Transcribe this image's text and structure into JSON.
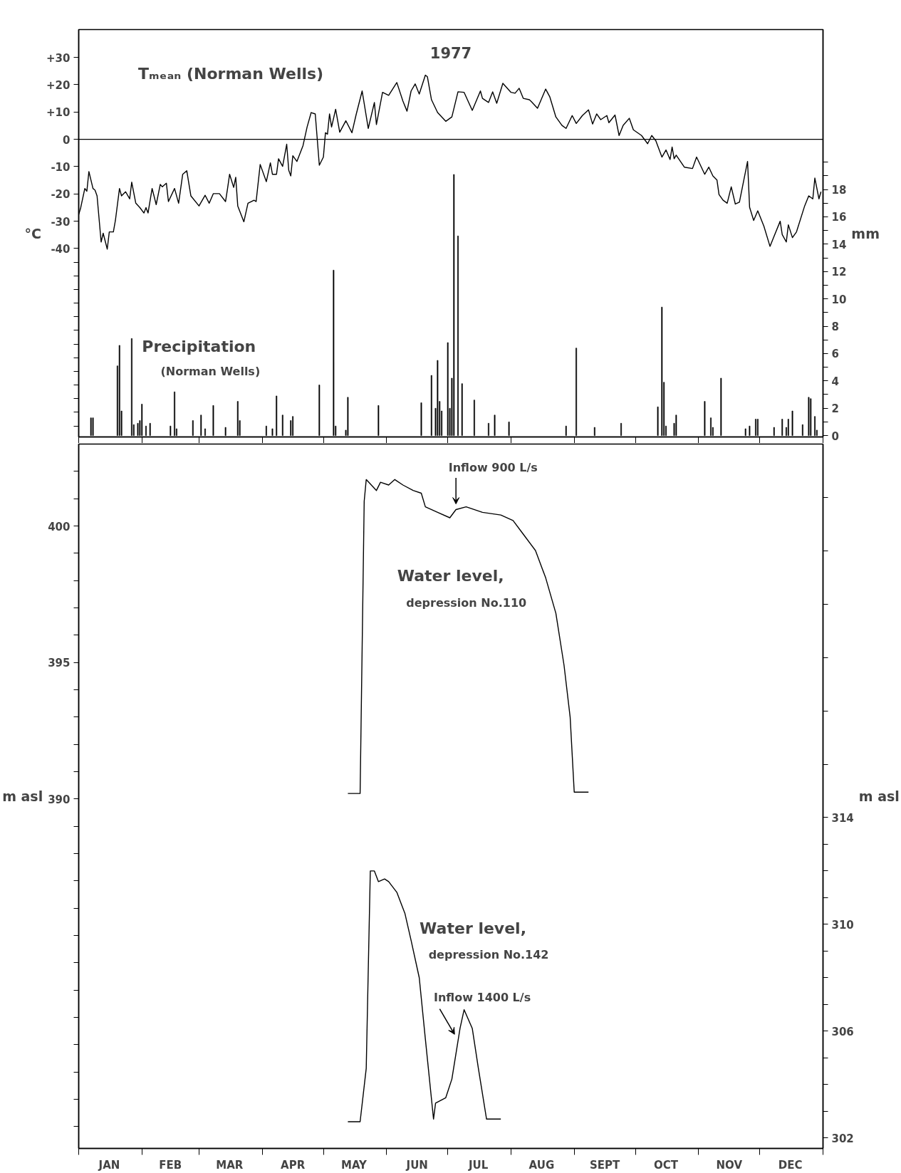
{
  "chart_data": [
    {
      "type": "line",
      "title": "1977",
      "ylabel": "°C",
      "y2label": "mm",
      "grid": false,
      "tick_labels": "y",
      "xlim": [
        "1977-01-01",
        "1978-01-01"
      ],
      "xticks": [
        {
          "value": "1977-01-01",
          "label": null
        },
        {
          "value": "1977-02-01",
          "label": null
        },
        {
          "value": "1977-03-01",
          "label": null
        },
        {
          "value": "1977-04-01",
          "label": null
        },
        {
          "value": "1977-05-01",
          "label": null
        },
        {
          "value": "1977-06-01",
          "label": null
        },
        {
          "value": "1977-07-01",
          "label": null
        },
        {
          "value": "1977-08-01",
          "label": null
        },
        {
          "value": "1977-09-01",
          "label": null
        },
        {
          "value": "1977-10-01",
          "label": null
        },
        {
          "value": "1977-11-01",
          "label": null
        },
        {
          "value": "1977-12-01",
          "label": null
        },
        {
          "value": "1978-01-01",
          "label": null
        }
      ],
      "ylim": [
        -109,
        40.2
      ],
      "yticks": [
        {
          "value": 30,
          "label": "+30"
        },
        {
          "value": 20,
          "label": "+20"
        },
        {
          "value": 10,
          "label": "+10"
        },
        0,
        -10,
        -20,
        -30,
        -40,
        {
          "value": -45,
          "label": null
        },
        {
          "value": -50,
          "label": null
        },
        {
          "value": -55,
          "label": null
        },
        {
          "value": -60,
          "label": null
        },
        {
          "value": -65,
          "label": null
        },
        {
          "value": -70,
          "label": null
        },
        {
          "value": -75,
          "label": null
        },
        {
          "value": -80,
          "label": null
        },
        {
          "value": -85,
          "label": null
        },
        {
          "value": -90,
          "label": null
        },
        {
          "value": -95,
          "label": null
        },
        {
          "value": -100,
          "label": null
        },
        {
          "value": -105,
          "label": null
        }
      ],
      "y2lim": [
        -0.1,
        29.7
      ],
      "y2ticks": [
        0,
        {
          "value": 1,
          "label": null
        },
        2,
        {
          "value": 3,
          "label": null
        },
        4,
        {
          "value": 5,
          "label": null
        },
        6,
        {
          "value": 7,
          "label": null
        },
        8,
        {
          "value": 9,
          "label": null
        },
        10,
        {
          "value": 11,
          "label": null
        },
        12,
        {
          "value": 13,
          "label": null
        },
        14,
        {
          "value": 15,
          "label": null
        },
        16,
        {
          "value": 17,
          "label": null
        },
        18,
        {
          "value": 19,
          "label": null
        },
        {
          "value": 20,
          "label": null
        }
      ],
      "ref_lines": [
        {
          "axis": "y",
          "value": 0,
          "color": "#000000"
        }
      ],
      "series": [
        {
          "name": "Tₘₑₐₙ (Norman Wells)",
          "type": "line",
          "color": "#000000",
          "line_style": "solid",
          "x": [
            "1977-01-01",
            "1977-01-02",
            "1977-01-04",
            "1977-01-05",
            "1977-01-06",
            "1977-01-08",
            "1977-01-09",
            "1977-01-10",
            "1977-01-12",
            "1977-01-13",
            "1977-01-15",
            "1977-01-16",
            "1977-01-18",
            "1977-01-19",
            "1977-01-21",
            "1977-01-22",
            "1977-01-24",
            "1977-01-26",
            "1977-01-27",
            "1977-01-29",
            "1977-01-31",
            "1977-02-02",
            "1977-02-03",
            "1977-02-04",
            "1977-02-06",
            "1977-02-08",
            "1977-02-10",
            "1977-02-11",
            "1977-02-13",
            "1977-02-14",
            "1977-02-17",
            "1977-02-19",
            "1977-02-21",
            "1977-02-23",
            "1977-02-25",
            "1977-03-01",
            "1977-03-04",
            "1977-03-06",
            "1977-03-08",
            "1977-03-11",
            "1977-03-14",
            "1977-03-15",
            "1977-03-16",
            "1977-03-18",
            "1977-03-19",
            "1977-03-20",
            "1977-03-23",
            "1977-03-25",
            "1977-03-28",
            "1977-03-29",
            "1977-03-31",
            "1977-04-03",
            "1977-04-05",
            "1977-04-06",
            "1977-04-08",
            "1977-04-09",
            "1977-04-11",
            "1977-04-13",
            "1977-04-14",
            "1977-04-15",
            "1977-04-16",
            "1977-04-18",
            "1977-04-21",
            "1977-04-23",
            "1977-04-25",
            "1977-04-27",
            "1977-04-29",
            "1977-05-01",
            "1977-05-02",
            "1977-05-03",
            "1977-05-04",
            "1977-05-05",
            "1977-05-07",
            "1977-05-09",
            "1977-05-12",
            "1977-05-15",
            "1977-05-17",
            "1977-05-20",
            "1977-05-23",
            "1977-05-26",
            "1977-05-27",
            "1977-05-30",
            "1977-06-02",
            "1977-06-06",
            "1977-06-09",
            "1977-06-11",
            "1977-06-13",
            "1977-06-15",
            "1977-06-17",
            "1977-06-20",
            "1977-06-21",
            "1977-06-23",
            "1977-06-26",
            "1977-06-30",
            "1977-07-03",
            "1977-07-06",
            "1977-07-09",
            "1977-07-13",
            "1977-07-17",
            "1977-07-18",
            "1977-07-21",
            "1977-07-23",
            "1977-07-25",
            "1977-07-28",
            "1977-08-01",
            "1977-08-03",
            "1977-08-05",
            "1977-08-07",
            "1977-08-10",
            "1977-08-11",
            "1977-08-14",
            "1977-08-18",
            "1977-08-20",
            "1977-08-23",
            "1977-08-26",
            "1977-08-28",
            "1977-08-31",
            "1977-09-02",
            "1977-09-05",
            "1977-09-08",
            "1977-09-10",
            "1977-09-12",
            "1977-09-14",
            "1977-09-17",
            "1977-09-18",
            "1977-09-21",
            "1977-09-23",
            "1977-09-25",
            "1977-09-28",
            "1977-09-30",
            "1977-10-04",
            "1977-10-07",
            "1977-10-09",
            "1977-10-11",
            "1977-10-14",
            "1977-10-16",
            "1977-10-18",
            "1977-10-19",
            "1977-10-20",
            "1977-10-21",
            "1977-10-25",
            "1977-10-29",
            "1977-10-31",
            "1977-11-04",
            "1977-11-06",
            "1977-11-08",
            "1977-11-10",
            "1977-11-11",
            "1977-11-13",
            "1977-11-15",
            "1977-11-17",
            "1977-11-19",
            "1977-11-21",
            "1977-11-25",
            "1977-11-26",
            "1977-11-28",
            "1977-11-30",
            "1977-12-03",
            "1977-12-06",
            "1977-12-08",
            "1977-12-11",
            "1977-12-12",
            "1977-12-14",
            "1977-12-15",
            "1977-12-17",
            "1977-12-19",
            "1977-12-23",
            "1977-12-25",
            "1977-12-27",
            "1977-12-28",
            "1977-12-30",
            "1977-12-31"
          ],
          "values": [
            -27.6,
            -25,
            -18,
            -19,
            -11.8,
            -18,
            -18.6,
            -20.7,
            -37.6,
            -34.4,
            -40.2,
            -33.9,
            -33.9,
            -29.7,
            -18,
            -20.7,
            -19.2,
            -21.8,
            -15.7,
            -23.4,
            -25,
            -27,
            -25,
            -27,
            -18,
            -23.9,
            -16.5,
            -17.4,
            -16.1,
            -22.8,
            -18,
            -23.4,
            -12.8,
            -11.5,
            -20.7,
            -24.4,
            -20.5,
            -23.4,
            -19.9,
            -19.9,
            -22.8,
            -18,
            -12.8,
            -17.6,
            -13.9,
            -24.4,
            -30.2,
            -23.4,
            -22.3,
            -22.8,
            -9.2,
            -15.5,
            -8.6,
            -12.8,
            -12.8,
            -7.1,
            -9.9,
            -1.8,
            -11.3,
            -13.4,
            -6,
            -8.1,
            -2.3,
            4.5,
            9.8,
            9.3,
            -9.5,
            -6.5,
            2.4,
            1.9,
            9.3,
            4.5,
            11,
            2.6,
            6.8,
            2.4,
            8.9,
            17.7,
            4,
            13.5,
            5.4,
            17.2,
            16.1,
            20.8,
            14,
            10.3,
            17.7,
            20.3,
            16.6,
            23.5,
            22.9,
            14.5,
            9.8,
            6.6,
            8.2,
            17.4,
            17.2,
            10.6,
            17.7,
            15,
            13.5,
            17.4,
            13.2,
            20.5,
            17.2,
            16.9,
            18.7,
            15,
            14.5,
            13.8,
            11.4,
            18.4,
            15.6,
            8.2,
            5.1,
            4,
            8.7,
            5.8,
            8.7,
            10.8,
            5.6,
            9.3,
            7.2,
            8.7,
            6.1,
            8.9,
            1.4,
            5.1,
            7.7,
            3.5,
            1.4,
            -1.6,
            1.4,
            -0.5,
            -6.5,
            -3.9,
            -7.4,
            -2.8,
            -7.1,
            -5.8,
            -10.2,
            -10.7,
            -6.5,
            -12.8,
            -10.2,
            -13.4,
            -14.9,
            -20.2,
            -22.3,
            -23.4,
            -17.4,
            -23.7,
            -23,
            -8.1,
            -24.9,
            -29.7,
            -26.2,
            -31.8,
            -39.2,
            -35.5,
            -30,
            -34.9,
            -37.6,
            -31.3,
            -36,
            -33.9,
            -24.4,
            -20.7,
            -21.8,
            -14.2,
            -21.8,
            -19.2
          ]
        },
        {
          "name": "Precipitation (Norman Wells)",
          "type": "bar",
          "axis": "y2",
          "color": "#000000",
          "x": [
            "1977-01-07",
            "1977-01-08",
            "1977-01-20",
            "1977-01-21",
            "1977-01-22",
            "1977-01-27",
            "1977-01-28",
            "1977-01-30",
            "1977-01-31",
            "1977-02-01",
            "1977-02-03",
            "1977-02-05",
            "1977-02-15",
            "1977-02-17",
            "1977-02-18",
            "1977-02-26",
            "1977-03-02",
            "1977-03-04",
            "1977-03-08",
            "1977-03-14",
            "1977-03-20",
            "1977-03-21",
            "1977-04-03",
            "1977-04-06",
            "1977-04-08",
            "1977-04-11",
            "1977-04-15",
            "1977-04-16",
            "1977-04-29",
            "1977-05-06",
            "1977-05-07",
            "1977-05-12",
            "1977-05-13",
            "1977-05-28",
            "1977-06-18",
            "1977-06-23",
            "1977-06-25",
            "1977-06-26",
            "1977-06-27",
            "1977-06-28",
            "1977-07-01",
            "1977-07-02",
            "1977-07-03",
            "1977-07-04",
            "1977-07-06",
            "1977-07-08",
            "1977-07-14",
            "1977-07-21",
            "1977-07-24",
            "1977-07-31",
            "1977-08-28",
            "1977-09-02",
            "1977-09-11",
            "1977-09-24",
            "1977-10-12",
            "1977-10-14",
            "1977-10-15",
            "1977-10-16",
            "1977-10-20",
            "1977-10-21",
            "1977-11-04",
            "1977-11-07",
            "1977-11-08",
            "1977-11-12",
            "1977-11-24",
            "1977-11-26",
            "1977-11-29",
            "1977-11-30",
            "1977-12-08",
            "1977-12-12",
            "1977-12-14",
            "1977-12-15",
            "1977-12-17",
            "1977-12-22",
            "1977-12-25",
            "1977-12-26",
            "1977-12-28",
            "1977-12-29"
          ],
          "values": [
            1.3,
            1.3,
            5.1,
            6.6,
            1.8,
            7.1,
            0.8,
            0.9,
            1.1,
            2.3,
            0.7,
            0.9,
            0.7,
            3.2,
            0.5,
            1.1,
            1.5,
            0.5,
            2.2,
            0.6,
            2.5,
            1.1,
            0.7,
            0.5,
            2.9,
            1.5,
            1.1,
            1.4,
            3.7,
            12.1,
            0.7,
            0.4,
            2.8,
            2.2,
            2.4,
            4.4,
            2,
            5.5,
            2.5,
            1.8,
            6.8,
            2,
            4.2,
            19.1,
            14.6,
            3.8,
            2.6,
            0.9,
            1.5,
            1,
            0.7,
            6.4,
            0.6,
            0.9,
            2.1,
            9.4,
            3.9,
            0.7,
            0.9,
            1.5,
            2.5,
            1.3,
            0.6,
            4.2,
            0.5,
            0.7,
            1.2,
            1.2,
            0.6,
            1.2,
            0.6,
            1.2,
            1.8,
            0.8,
            2.8,
            2.7,
            1.4,
            0.4
          ]
        }
      ]
    },
    {
      "type": "line",
      "ylabel": "m asl",
      "y2label": "m asl",
      "grid": false,
      "xlim": [
        "1977-01-01",
        "1978-01-01"
      ],
      "xticks": [
        {
          "value": "1977-01-01",
          "label": null
        },
        {
          "value": "1977-01-16",
          "label": "JAN"
        },
        {
          "value": "1977-02-01",
          "label": null
        },
        {
          "value": "1977-02-15",
          "label": "FEB"
        },
        {
          "value": "1977-03-01",
          "label": null
        },
        {
          "value": "1977-03-16",
          "label": "MAR"
        },
        {
          "value": "1977-04-01",
          "label": null
        },
        {
          "value": "1977-04-16",
          "label": "APR"
        },
        {
          "value": "1977-05-01",
          "label": null
        },
        {
          "value": "1977-05-16",
          "label": "MAY"
        },
        {
          "value": "1977-06-01",
          "label": null
        },
        {
          "value": "1977-06-16",
          "label": "JUN"
        },
        {
          "value": "1977-07-01",
          "label": null
        },
        {
          "value": "1977-07-16",
          "label": "JUL"
        },
        {
          "value": "1977-08-01",
          "label": null
        },
        {
          "value": "1977-08-16",
          "label": "AUG"
        },
        {
          "value": "1977-09-01",
          "label": null
        },
        {
          "value": "1977-09-16",
          "label": "SEPT"
        },
        {
          "value": "1977-10-01",
          "label": null
        },
        {
          "value": "1977-10-16",
          "label": "OCT"
        },
        {
          "value": "1977-11-01",
          "label": null
        },
        {
          "value": "1977-11-16",
          "label": "NOV"
        },
        {
          "value": "1977-12-01",
          "label": null
        },
        {
          "value": "1977-12-16",
          "label": "DEC"
        },
        {
          "value": "1978-01-01",
          "label": null
        }
      ],
      "ylim": [
        377.2,
        403.0
      ],
      "yticks": [
        {
          "value": 378,
          "label": null
        },
        {
          "value": 379,
          "label": null
        },
        {
          "value": 380,
          "label": null
        },
        {
          "value": 381,
          "label": null
        },
        {
          "value": 382,
          "label": null
        },
        {
          "value": 383,
          "label": null
        },
        {
          "value": 384,
          "label": null
        },
        {
          "value": 385,
          "label": null
        },
        {
          "value": 386,
          "label": null
        },
        {
          "value": 387,
          "label": null
        },
        {
          "value": 388,
          "label": null
        },
        {
          "value": 389,
          "label": null
        },
        390,
        {
          "value": 391,
          "label": null
        },
        {
          "value": 392,
          "label": null
        },
        {
          "value": 393,
          "label": null
        },
        {
          "value": 394,
          "label": null
        },
        395,
        {
          "value": 396,
          "label": null
        },
        {
          "value": 397,
          "label": null
        },
        {
          "value": 398,
          "label": null
        },
        {
          "value": 399,
          "label": null
        },
        400,
        {
          "value": 401,
          "label": null
        },
        {
          "value": 402,
          "label": null
        }
      ],
      "y2lim": [
        301.6,
        328.0
      ],
      "y2ticks": [
        302,
        {
          "value": 303,
          "label": null
        },
        {
          "value": 304,
          "label": null
        },
        {
          "value": 305,
          "label": null
        },
        306,
        {
          "value": 307,
          "label": null
        },
        {
          "value": 308,
          "label": null
        },
        {
          "value": 309,
          "label": null
        },
        310,
        {
          "value": 311,
          "label": null
        },
        {
          "value": 312,
          "label": null
        },
        {
          "value": 313,
          "label": null
        },
        314,
        {
          "value": 316,
          "label": null
        },
        {
          "value": 318,
          "label": null
        },
        {
          "value": 320,
          "label": null
        },
        {
          "value": 322,
          "label": null
        },
        {
          "value": 324,
          "label": null
        },
        {
          "value": 326,
          "label": null
        }
      ],
      "annotations": [
        {
          "text": "Inflow  900 L/s",
          "x": "1977-07-05",
          "y": 400.6
        },
        "Inflow 1400 L/s"
      ],
      "series": [
        {
          "name": "Water level, depression No.110",
          "color": "#000000",
          "x": [
            "1977-05-13",
            "1977-05-19",
            "1977-05-21",
            "1977-05-22",
            "1977-05-27",
            "1977-05-29",
            "1977-06-02",
            "1977-06-05",
            "1977-06-09",
            "1977-06-14",
            "1977-06-18",
            "1977-06-20",
            "1977-06-26",
            "1977-07-02",
            "1977-07-05",
            "1977-07-10",
            "1977-07-18",
            "1977-07-27",
            "1977-08-02",
            "1977-08-07",
            "1977-08-13",
            "1977-08-18",
            "1977-08-23",
            "1977-08-27",
            "1977-08-30",
            "1977-09-01",
            "1977-09-08"
          ],
          "values": [
            390.2,
            390.2,
            400.9,
            401.7,
            401.3,
            401.6,
            401.5,
            401.7,
            401.5,
            401.3,
            401.2,
            400.7,
            400.5,
            400.3,
            400.6,
            400.7,
            400.5,
            400.4,
            400.2,
            399.7,
            399.1,
            398.1,
            396.8,
            394.9,
            393.0,
            390.25,
            390.25
          ]
        },
        {
          "name": "Water level, depression No.142",
          "color": "#000000",
          "axis": "y2",
          "x": [
            "1977-05-13",
            "1977-05-19",
            "1977-05-22",
            "1977-05-24",
            "1977-05-26",
            "1977-05-28",
            "1977-05-31",
            "1977-06-02",
            "1977-06-06",
            "1977-06-10",
            "1977-06-13",
            "1977-06-17",
            "1977-06-20",
            "1977-06-24",
            "1977-06-25",
            "1977-06-30",
            "1977-07-03",
            "1977-07-07",
            "1977-07-09",
            "1977-07-13",
            "1977-07-16",
            "1977-07-20",
            "1977-07-27"
          ],
          "values": [
            302.6,
            302.6,
            304.6,
            312.0,
            312.0,
            311.6,
            311.7,
            311.6,
            311.2,
            310.4,
            309.4,
            308.0,
            305.7,
            302.7,
            303.3,
            303.5,
            304.2,
            306.1,
            306.8,
            306.1,
            304.6,
            302.7,
            302.7
          ]
        }
      ]
    }
  ]
}
